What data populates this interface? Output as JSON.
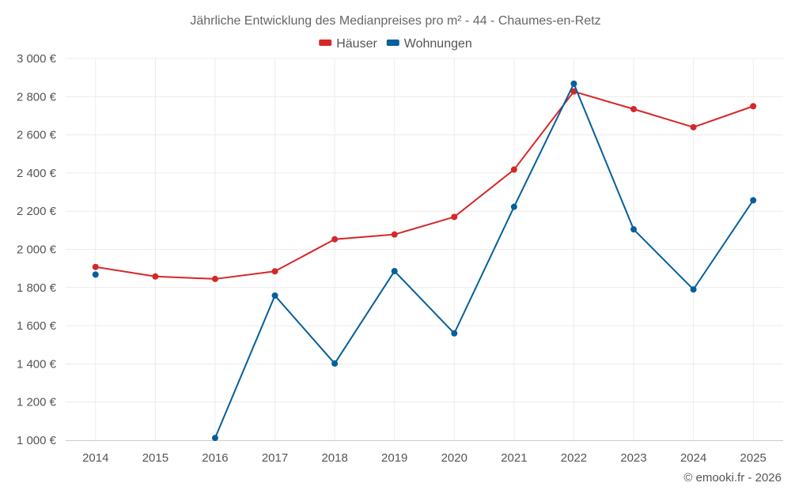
{
  "chart_data": {
    "type": "line",
    "title": "Jährliche Entwicklung des Medianpreises pro m² - 44 - Chaumes-en-Retz",
    "categories": [
      "2014",
      "2015",
      "2016",
      "2017",
      "2018",
      "2019",
      "2020",
      "2021",
      "2022",
      "2023",
      "2024",
      "2025"
    ],
    "ylim": [
      1000,
      3000
    ],
    "yticks": [
      1000,
      1200,
      1400,
      1600,
      1800,
      2000,
      2200,
      2400,
      2600,
      2800,
      3000
    ],
    "ytick_labels": [
      "1 000 €",
      "1 200 €",
      "1 400 €",
      "1 600 €",
      "1 800 €",
      "2 000 €",
      "2 200 €",
      "2 400 €",
      "2 600 €",
      "2 800 €",
      "3 000 €"
    ],
    "grid": true,
    "legend_position": "top-center",
    "series": [
      {
        "name": "Häuser",
        "color": "#d62728",
        "values": [
          1908,
          1858,
          1845,
          1885,
          2053,
          2078,
          2170,
          2418,
          2827,
          2735,
          2640,
          2750
        ]
      },
      {
        "name": "Wohnungen",
        "color": "#045f9a",
        "values": [
          1868,
          null,
          1012,
          1758,
          1402,
          1886,
          1560,
          2223,
          2868,
          2105,
          1790,
          2257
        ]
      }
    ]
  },
  "credit": "© emooki.fr - 2026"
}
